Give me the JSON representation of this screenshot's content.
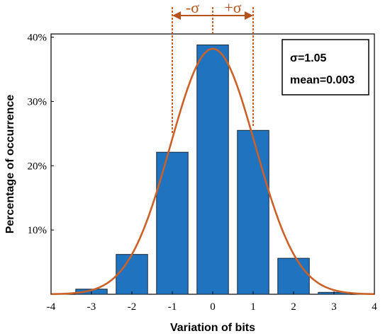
{
  "chart_data": {
    "type": "bar",
    "x": [
      -3,
      -2,
      -1,
      0,
      1,
      2,
      3
    ],
    "values": [
      0.8,
      6.2,
      22.1,
      38.8,
      25.5,
      5.6,
      0.3
    ],
    "fit_curve": {
      "type": "normal",
      "sigma": 1.05,
      "mean": 0.003,
      "peak": 38.2
    },
    "xlabel": "Variation of bits",
    "ylabel": "Percentage of occurrence",
    "xlim": [
      -4,
      4
    ],
    "ylim": [
      0,
      40
    ],
    "xticks": [
      "-4",
      "-3",
      "-2",
      "-1",
      "0",
      "1",
      "2",
      "3",
      "4"
    ],
    "yticks": [
      "10%",
      "20%",
      "30%",
      "40%"
    ],
    "annotations": {
      "box_line1": "σ=1.05",
      "box_line2": "mean=0.003",
      "minus_sigma": "-σ",
      "plus_sigma": "+σ"
    },
    "sigma_markers": [
      -1,
      0,
      1
    ],
    "colors": {
      "bar": "#1f73bf",
      "curve": "#cc6128",
      "arrow": "#b8521b"
    }
  }
}
